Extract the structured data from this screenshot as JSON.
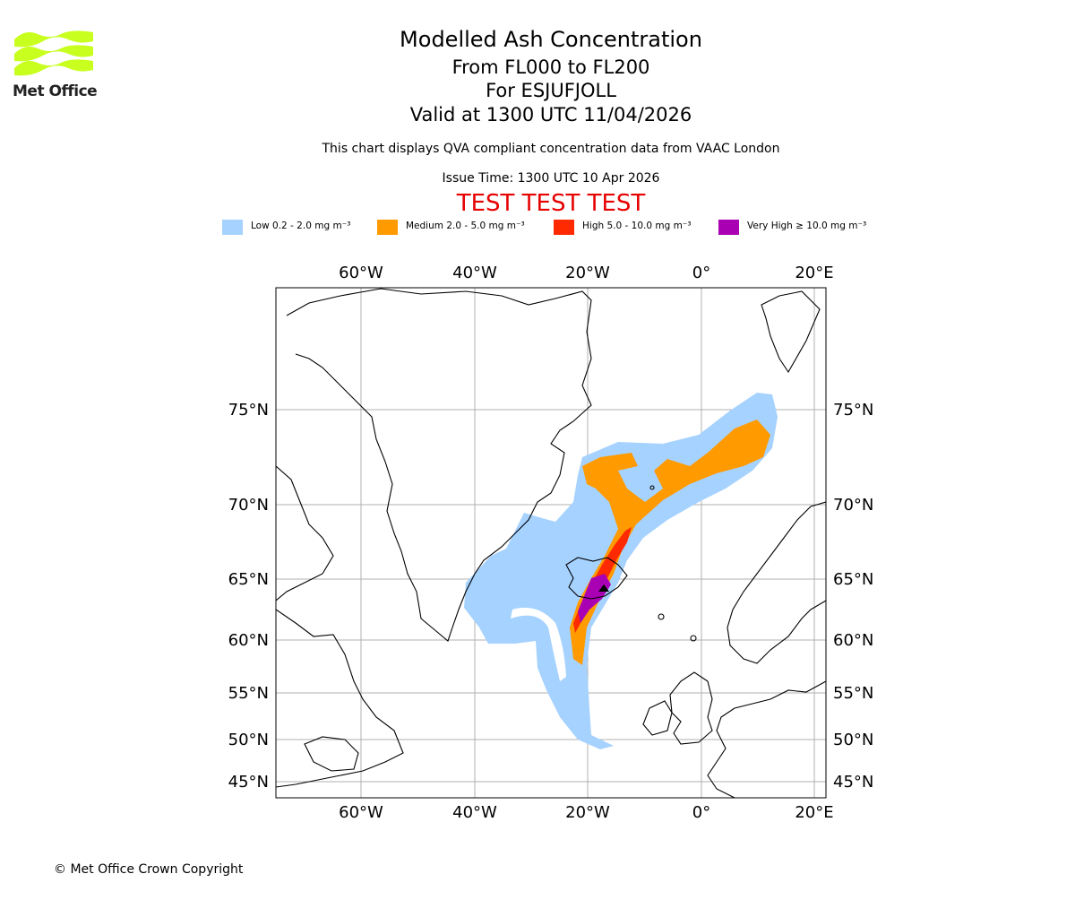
{
  "logo": {
    "name": "Met Office",
    "accent_color": "#c8ff1e"
  },
  "header": {
    "title": "Modelled Ash Concentration",
    "levels": "From FL000 to FL200",
    "volcano": "For ESJUFJOLL",
    "valid_time": "Valid at 1300 UTC 11/04/2026",
    "compliance_note": "This chart displays QVA compliant concentration data from VAAC London",
    "issue_time": "Issue Time: 1300 UTC 10 Apr 2026",
    "test_banner": "TEST TEST TEST"
  },
  "legend": [
    {
      "label": "Low 0.2 - 2.0 mg m⁻³",
      "color": "#a6d2ff"
    },
    {
      "label": "Medium 2.0 - 5.0 mg m⁻³",
      "color": "#ff9a00"
    },
    {
      "label": "High 5.0 - 10.0 mg m⁻³",
      "color": "#ff2a00"
    },
    {
      "label": "Very High  ≥  10.0 mg m⁻³",
      "color": "#aa00b4"
    }
  ],
  "map": {
    "longitude_ticks": [
      "60°W",
      "40°W",
      "20°W",
      "0°",
      "20°E"
    ],
    "latitude_ticks": [
      "75°N",
      "70°N",
      "65°N",
      "60°N",
      "55°N",
      "50°N",
      "45°N"
    ]
  },
  "footer": {
    "copyright": "© Met Office Crown Copyright"
  }
}
